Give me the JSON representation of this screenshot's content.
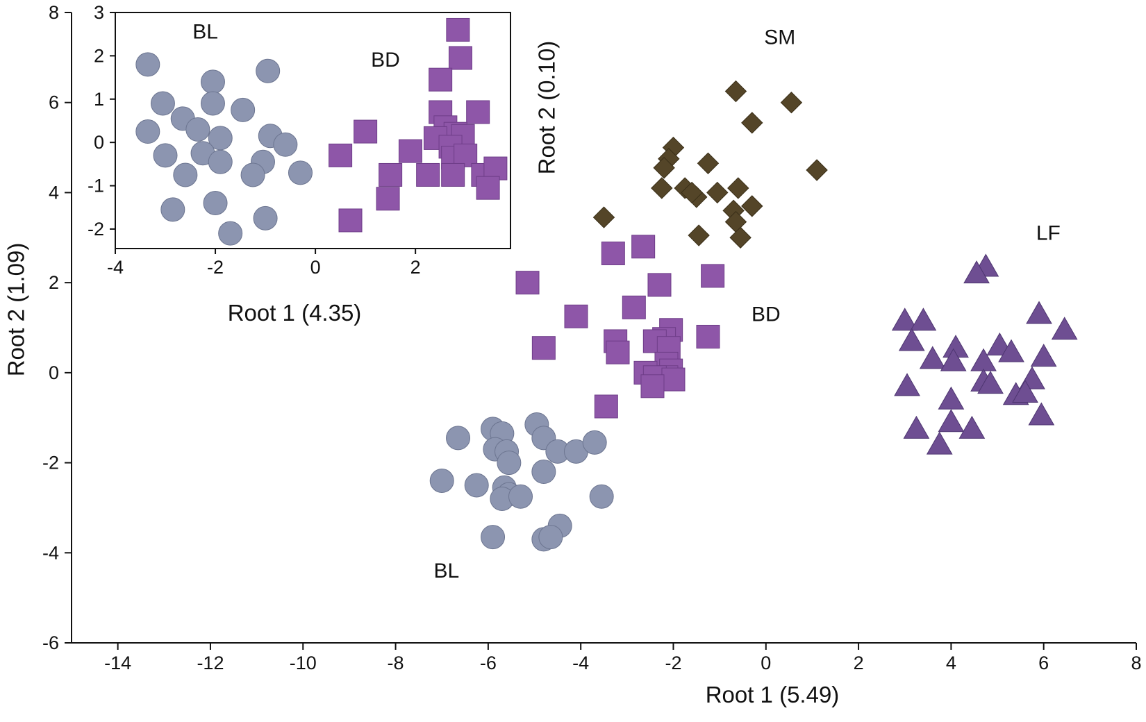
{
  "chart_data": [
    {
      "id": "main",
      "type": "scatter",
      "title": "",
      "xlabel": "Root 1 (5.49)",
      "ylabel": "Root 2  (1.09)",
      "xlim": [
        -15,
        8
      ],
      "ylim": [
        -6,
        8
      ],
      "xticks": [
        -14,
        -12,
        -10,
        -8,
        -6,
        -4,
        -2,
        0,
        2,
        4,
        6,
        8
      ],
      "yticks": [
        -6,
        -4,
        -2,
        0,
        2,
        4,
        6,
        8
      ],
      "grid": false,
      "series": [
        {
          "name": "BL",
          "marker": "circle",
          "color": "#8c95b0",
          "points": [
            [
              -5.9,
              -1.25
            ],
            [
              -5.7,
              -1.35
            ],
            [
              -5.85,
              -1.7
            ],
            [
              -5.6,
              -1.75
            ],
            [
              -5.55,
              -2.0
            ],
            [
              -6.65,
              -1.45
            ],
            [
              -4.95,
              -1.15
            ],
            [
              -4.8,
              -1.45
            ],
            [
              -4.5,
              -1.75
            ],
            [
              -4.1,
              -1.75
            ],
            [
              -3.7,
              -1.55
            ],
            [
              -4.8,
              -2.2
            ],
            [
              -7.0,
              -2.4
            ],
            [
              -6.25,
              -2.5
            ],
            [
              -5.65,
              -2.55
            ],
            [
              -5.55,
              -2.7
            ],
            [
              -5.7,
              -2.8
            ],
            [
              -5.3,
              -2.75
            ],
            [
              -3.55,
              -2.75
            ],
            [
              -4.45,
              -3.4
            ],
            [
              -4.8,
              -3.7
            ],
            [
              -4.65,
              -3.65
            ],
            [
              -5.9,
              -3.65
            ]
          ]
        },
        {
          "name": "BD",
          "marker": "square",
          "color": "#8e56a8",
          "points": [
            [
              -2.65,
              2.8
            ],
            [
              -3.3,
              2.65
            ],
            [
              -5.15,
              2.0
            ],
            [
              -2.3,
              1.95
            ],
            [
              -1.15,
              2.15
            ],
            [
              -2.85,
              1.45
            ],
            [
              -4.1,
              1.25
            ],
            [
              -3.25,
              0.7
            ],
            [
              -3.2,
              0.45
            ],
            [
              -2.05,
              0.95
            ],
            [
              -2.2,
              0.75
            ],
            [
              -2.4,
              0.7
            ],
            [
              -2.1,
              0.55
            ],
            [
              -1.25,
              0.8
            ],
            [
              -4.8,
              0.55
            ],
            [
              -2.15,
              0.2
            ],
            [
              -2.05,
              0.05
            ],
            [
              -2.15,
              -0.1
            ],
            [
              -2.6,
              0.0
            ],
            [
              -2.4,
              -0.1
            ],
            [
              -2.0,
              -0.15
            ],
            [
              -2.45,
              -0.3
            ],
            [
              -3.45,
              -0.75
            ]
          ]
        },
        {
          "name": "SM",
          "marker": "diamond",
          "color": "#544528",
          "points": [
            [
              -0.65,
              6.25
            ],
            [
              0.55,
              6.0
            ],
            [
              -0.3,
              5.55
            ],
            [
              -2.0,
              5.0
            ],
            [
              -2.1,
              4.75
            ],
            [
              -2.2,
              4.55
            ],
            [
              -1.25,
              4.65
            ],
            [
              1.1,
              4.5
            ],
            [
              -2.25,
              4.1
            ],
            [
              -1.75,
              4.1
            ],
            [
              -1.5,
              3.9
            ],
            [
              -1.6,
              4.0
            ],
            [
              -1.05,
              4.0
            ],
            [
              -0.6,
              4.1
            ],
            [
              -0.3,
              3.7
            ],
            [
              -0.7,
              3.6
            ],
            [
              -0.65,
              3.35
            ],
            [
              -3.5,
              3.45
            ],
            [
              -1.45,
              3.05
            ],
            [
              -0.55,
              3.0
            ]
          ]
        },
        {
          "name": "LF",
          "marker": "triangle",
          "color": "#6e4e92",
          "points": [
            [
              4.75,
              2.35
            ],
            [
              4.55,
              2.2
            ],
            [
              3.0,
              1.15
            ],
            [
              3.4,
              1.15
            ],
            [
              3.15,
              0.7
            ],
            [
              5.9,
              1.3
            ],
            [
              6.45,
              0.95
            ],
            [
              4.1,
              0.55
            ],
            [
              5.05,
              0.6
            ],
            [
              5.3,
              0.45
            ],
            [
              3.6,
              0.3
            ],
            [
              4.05,
              0.25
            ],
            [
              4.7,
              0.25
            ],
            [
              6.0,
              0.35
            ],
            [
              3.05,
              -0.3
            ],
            [
              4.7,
              -0.2
            ],
            [
              4.85,
              -0.25
            ],
            [
              5.75,
              -0.15
            ],
            [
              5.4,
              -0.5
            ],
            [
              5.6,
              -0.45
            ],
            [
              4.0,
              -0.6
            ],
            [
              3.25,
              -1.25
            ],
            [
              4.0,
              -1.1
            ],
            [
              4.45,
              -1.25
            ],
            [
              5.95,
              -0.95
            ],
            [
              3.75,
              -1.6
            ]
          ]
        }
      ],
      "annotations": [
        {
          "text": "SM",
          "x": 0.3,
          "y": 7.3
        },
        {
          "text": "LF",
          "x": 6.1,
          "y": 2.95
        },
        {
          "text": "BD",
          "x": 0.0,
          "y": 1.15
        },
        {
          "text": "BL",
          "x": -6.9,
          "y": -4.55
        }
      ]
    },
    {
      "id": "inset",
      "type": "scatter",
      "title": "",
      "xlabel": "Root 1 (4.35)",
      "ylabel": "Root 2  (0.10)",
      "xlim": [
        -4,
        3.9
      ],
      "ylim": [
        -2.45,
        3
      ],
      "xticks": [
        -4,
        -2,
        0,
        2
      ],
      "yticks": [
        -2,
        -1,
        0,
        1,
        2,
        3
      ],
      "grid": false,
      "series": [
        {
          "name": "BL",
          "marker": "circle",
          "color": "#8c95b0",
          "points": [
            [
              -3.35,
              1.8
            ],
            [
              -0.95,
              1.65
            ],
            [
              -2.05,
              1.4
            ],
            [
              -3.05,
              0.9
            ],
            [
              -2.05,
              0.9
            ],
            [
              -1.45,
              0.75
            ],
            [
              -2.65,
              0.55
            ],
            [
              -2.35,
              0.3
            ],
            [
              -3.35,
              0.25
            ],
            [
              -1.9,
              0.1
            ],
            [
              -0.9,
              0.15
            ],
            [
              -0.6,
              -0.05
            ],
            [
              -3.0,
              -0.3
            ],
            [
              -2.25,
              -0.25
            ],
            [
              -1.9,
              -0.45
            ],
            [
              -1.05,
              -0.45
            ],
            [
              -2.6,
              -0.75
            ],
            [
              -1.25,
              -0.75
            ],
            [
              -0.3,
              -0.7
            ],
            [
              -2.0,
              -1.4
            ],
            [
              -2.85,
              -1.55
            ],
            [
              -1.0,
              -1.75
            ],
            [
              -1.7,
              -2.1
            ]
          ]
        },
        {
          "name": "BD",
          "marker": "square",
          "color": "#8e56a8",
          "points": [
            [
              2.85,
              2.6
            ],
            [
              2.9,
              1.95
            ],
            [
              2.5,
              1.45
            ],
            [
              2.5,
              0.7
            ],
            [
              3.25,
              0.7
            ],
            [
              2.6,
              0.35
            ],
            [
              1.0,
              0.25
            ],
            [
              2.8,
              0.2
            ],
            [
              2.95,
              0.15
            ],
            [
              2.4,
              0.1
            ],
            [
              2.7,
              -0.1
            ],
            [
              0.5,
              -0.3
            ],
            [
              1.9,
              -0.2
            ],
            [
              2.75,
              -0.35
            ],
            [
              3.0,
              -0.3
            ],
            [
              1.5,
              -0.75
            ],
            [
              2.25,
              -0.75
            ],
            [
              2.75,
              -0.75
            ],
            [
              3.35,
              -0.75
            ],
            [
              3.6,
              -0.6
            ],
            [
              3.45,
              -1.05
            ],
            [
              1.45,
              -1.3
            ],
            [
              0.7,
              -1.8
            ]
          ]
        }
      ],
      "annotations": [
        {
          "text": "BL",
          "x": -2.2,
          "y": 2.4
        },
        {
          "text": "BD",
          "x": 1.4,
          "y": 1.75
        }
      ]
    }
  ]
}
